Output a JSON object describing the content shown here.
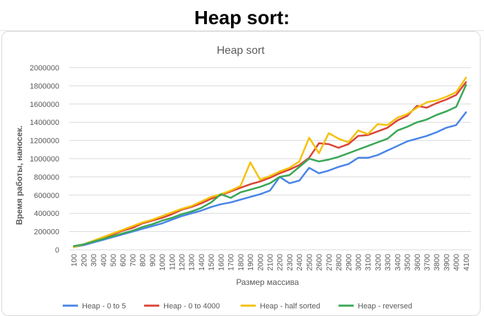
{
  "page": {
    "heading": "Heap sort:"
  },
  "chart_data": {
    "type": "line",
    "title": "Heap sort",
    "xlabel": "Размер массива",
    "ylabel": "Время работы, наносек.",
    "ylim": [
      0,
      2000000
    ],
    "yticks": [
      0,
      200000,
      400000,
      600000,
      800000,
      1000000,
      1200000,
      1400000,
      1600000,
      1800000,
      2000000
    ],
    "grid": true,
    "legend_position": "bottom",
    "categories": [
      100,
      200,
      300,
      400,
      500,
      600,
      700,
      800,
      900,
      1000,
      1100,
      1200,
      1300,
      1400,
      1500,
      1600,
      1700,
      1800,
      1900,
      2000,
      2100,
      2200,
      2300,
      2400,
      2500,
      2600,
      2700,
      2800,
      2900,
      3000,
      3100,
      3200,
      3300,
      3400,
      3500,
      3600,
      3700,
      3800,
      3900,
      4000,
      4100
    ],
    "series": [
      {
        "name": "Heap - 0 to 5",
        "color": "#4a86e8",
        "values": [
          30000,
          50000,
          80000,
          110000,
          140000,
          170000,
          200000,
          230000,
          260000,
          290000,
          330000,
          370000,
          400000,
          430000,
          470000,
          500000,
          520000,
          550000,
          580000,
          610000,
          650000,
          800000,
          730000,
          760000,
          900000,
          840000,
          870000,
          910000,
          940000,
          1010000,
          1010000,
          1040000,
          1090000,
          1140000,
          1190000,
          1220000,
          1250000,
          1290000,
          1340000,
          1370000,
          1510000
        ]
      },
      {
        "name": "Heap - 0 to 4000",
        "color": "#db4437",
        "values": [
          30000,
          60000,
          90000,
          130000,
          170000,
          210000,
          240000,
          290000,
          320000,
          350000,
          390000,
          440000,
          470000,
          510000,
          560000,
          600000,
          640000,
          680000,
          720000,
          750000,
          790000,
          840000,
          880000,
          930000,
          1010000,
          1170000,
          1160000,
          1120000,
          1160000,
          1250000,
          1260000,
          1300000,
          1340000,
          1420000,
          1470000,
          1580000,
          1560000,
          1610000,
          1650000,
          1700000,
          1840000
        ]
      },
      {
        "name": "Heap - half sorted",
        "color": "#f4c20d",
        "values": [
          30000,
          60000,
          100000,
          140000,
          180000,
          220000,
          260000,
          300000,
          330000,
          370000,
          410000,
          450000,
          480000,
          530000,
          580000,
          610000,
          650000,
          700000,
          960000,
          770000,
          810000,
          860000,
          900000,
          970000,
          1230000,
          1060000,
          1280000,
          1220000,
          1180000,
          1310000,
          1270000,
          1380000,
          1370000,
          1450000,
          1490000,
          1560000,
          1620000,
          1640000,
          1680000,
          1730000,
          1890000
        ]
      },
      {
        "name": "Heap - reversed",
        "color": "#3aa757",
        "values": [
          40000,
          60000,
          90000,
          120000,
          150000,
          180000,
          210000,
          250000,
          280000,
          320000,
          350000,
          390000,
          420000,
          460000,
          520000,
          610000,
          570000,
          630000,
          660000,
          690000,
          730000,
          800000,
          820000,
          910000,
          1000000,
          970000,
          990000,
          1020000,
          1060000,
          1100000,
          1140000,
          1180000,
          1220000,
          1310000,
          1350000,
          1400000,
          1430000,
          1480000,
          1520000,
          1570000,
          1810000
        ]
      }
    ]
  }
}
